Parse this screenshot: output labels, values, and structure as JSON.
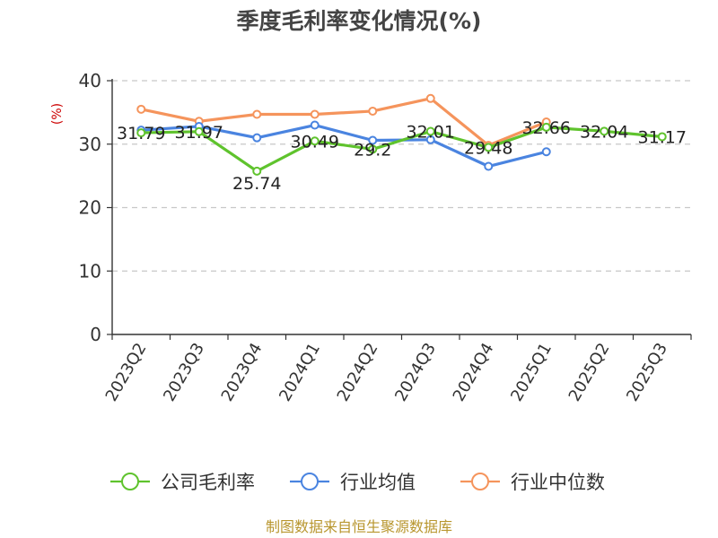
{
  "chart_data": {
    "type": "line",
    "title": "季度毛利率变化情况(%)",
    "ylabel": "(%)",
    "xlabel": "",
    "ylim": [
      0,
      40
    ],
    "yticks": [
      0,
      10,
      20,
      30,
      40
    ],
    "grid": true,
    "legend_position": "bottom",
    "categories": [
      "2023Q2",
      "2023Q3",
      "2023Q4",
      "2024Q1",
      "2024Q2",
      "2024Q3",
      "2024Q4",
      "2025Q1",
      "2025Q2",
      "2025Q3"
    ],
    "series": [
      {
        "name": "公司毛利率",
        "color": "#5fc32d",
        "values": [
          31.79,
          31.97,
          25.74,
          30.49,
          29.2,
          32.01,
          29.48,
          32.66,
          32.04,
          31.17
        ],
        "labels": [
          "31.79",
          "31.97",
          "25.74",
          "30.49",
          "29.2",
          "32.01",
          "29.48",
          "32.66",
          "32.04",
          "31.17"
        ]
      },
      {
        "name": "行业均值",
        "color": "#4a84e0",
        "values": [
          32.2,
          32.8,
          31.0,
          33.0,
          30.6,
          30.7,
          26.5,
          28.8,
          null,
          null
        ]
      },
      {
        "name": "行业中位数",
        "color": "#f5945c",
        "values": [
          35.5,
          33.6,
          34.7,
          34.7,
          35.2,
          37.2,
          29.8,
          33.5,
          null,
          null
        ]
      }
    ]
  },
  "footer": {
    "source": "制图数据来自恒生聚源数据库",
    "source_color": "#b8962e"
  },
  "ylabel_color": "#cc0000"
}
